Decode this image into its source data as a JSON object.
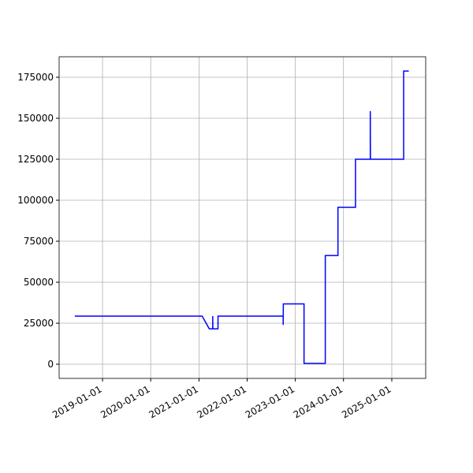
{
  "chart_data": {
    "type": "line",
    "x": [
      "2018-06-05",
      "2021-01-25",
      "2021-03-20",
      "2021-04-15",
      "2021-04-15",
      "2021-04-16",
      "2021-05-25",
      "2021-05-25",
      "2022-10-01",
      "2022-10-01",
      "2022-10-02",
      "2023-03-08",
      "2023-03-08",
      "2023-08-16",
      "2023-08-16",
      "2023-11-20",
      "2023-11-20",
      "2024-04-01",
      "2024-04-01",
      "2024-07-22",
      "2024-07-22",
      "2024-07-23",
      "2025-04-01",
      "2025-04-01",
      "2025-05-10"
    ],
    "series": [
      {
        "color": "#0000ff",
        "values": [
          29300,
          29300,
          21600,
          21600,
          29300,
          21600,
          21600,
          29300,
          29300,
          24000,
          36800,
          36800,
          500,
          500,
          66300,
          66300,
          95700,
          95700,
          125000,
          125000,
          154300,
          125000,
          125000,
          178800,
          178800
        ]
      }
    ],
    "xlim": [
      "2018-02-06",
      "2025-09-15"
    ],
    "xticks": [
      "2019-01-01",
      "2020-01-01",
      "2021-01-01",
      "2022-01-01",
      "2023-01-01",
      "2024-01-01",
      "2025-01-01"
    ],
    "ylim": [
      -8650,
      187500
    ],
    "yticks": [
      0,
      25000,
      50000,
      75000,
      100000,
      125000,
      150000,
      175000
    ],
    "grid": true
  }
}
